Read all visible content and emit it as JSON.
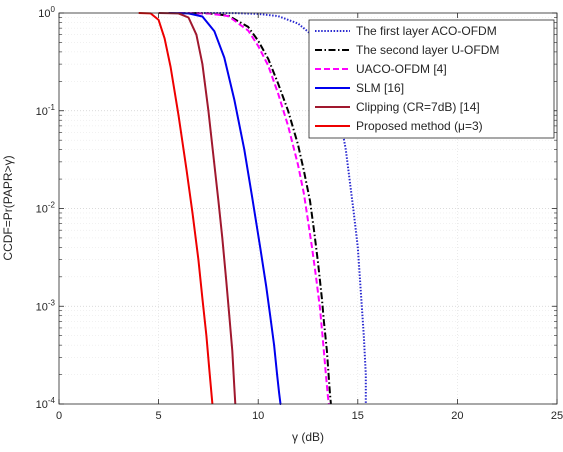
{
  "chart_data": {
    "type": "line",
    "title": "",
    "xlabel": "γ (dB)",
    "ylabel": "CCDF=Pr(PAPR>γ)",
    "xlim": [
      0,
      25
    ],
    "ylim": [
      0.0001,
      1
    ],
    "yscale": "log",
    "grid": true,
    "legend_position": "top-right",
    "x_ticks": [
      "0",
      "5",
      "10",
      "15",
      "20",
      "25"
    ],
    "y_ticks": [
      {
        "base": "10",
        "exp": "0"
      },
      {
        "base": "10",
        "exp": "-1"
      },
      {
        "base": "10",
        "exp": "-2"
      },
      {
        "base": "10",
        "exp": "-3"
      },
      {
        "base": "10",
        "exp": "-4"
      }
    ],
    "series": [
      {
        "name": "The first layer ACO-OFDM",
        "color": "#2a2ad0",
        "style": "dotted",
        "x": [
          6.5,
          8.0,
          9.0,
          10.0,
          11.0,
          12.0,
          12.6,
          13.0,
          13.5,
          13.8,
          14.1,
          14.4,
          14.6,
          14.8,
          15.0,
          15.1,
          15.2,
          15.3,
          15.4,
          15.4
        ],
        "y": [
          1.0,
          1.0,
          0.995,
          0.98,
          0.93,
          0.78,
          0.62,
          0.48,
          0.29,
          0.17,
          0.085,
          0.04,
          0.019,
          0.009,
          0.004,
          0.002,
          0.001,
          0.0005,
          0.0002,
          0.0001
        ]
      },
      {
        "name": "The second layer U-OFDM",
        "color": "#000000",
        "style": "dashdot",
        "x": [
          6.0,
          7.5,
          8.5,
          9.5,
          10.0,
          10.5,
          11.0,
          11.5,
          12.0,
          12.3,
          12.6,
          12.8,
          13.0,
          13.2,
          13.3,
          13.45,
          13.55,
          13.6,
          13.65
        ],
        "y": [
          1.0,
          0.99,
          0.94,
          0.72,
          0.52,
          0.34,
          0.19,
          0.1,
          0.045,
          0.024,
          0.012,
          0.006,
          0.0028,
          0.0012,
          0.0007,
          0.00035,
          0.00018,
          0.00013,
          0.0001
        ]
      },
      {
        "name": "UACO-OFDM [4]",
        "color": "#ff00ff",
        "style": "dashed",
        "x": [
          6.0,
          7.5,
          8.5,
          9.5,
          10.0,
          10.5,
          11.0,
          11.5,
          12.0,
          12.3,
          12.5,
          12.7,
          12.9,
          13.1,
          13.25,
          13.4,
          13.5,
          13.55
        ],
        "y": [
          1.0,
          0.99,
          0.93,
          0.66,
          0.46,
          0.29,
          0.15,
          0.07,
          0.028,
          0.014,
          0.0075,
          0.004,
          0.002,
          0.00095,
          0.00045,
          0.0002,
          0.00012,
          0.0001
        ]
      },
      {
        "name": "SLM [16]",
        "color": "#0000ee",
        "style": "solid",
        "x": [
          5.5,
          6.5,
          7.2,
          7.8,
          8.3,
          8.8,
          9.3,
          9.7,
          10.1,
          10.4,
          10.6,
          10.8,
          10.95,
          11.05,
          11.12,
          11.15
        ],
        "y": [
          1.0,
          0.99,
          0.92,
          0.65,
          0.35,
          0.13,
          0.04,
          0.013,
          0.004,
          0.0016,
          0.0008,
          0.0004,
          0.0002,
          0.00013,
          0.0001,
          0.0001
        ]
      },
      {
        "name": "Clipping (CR=7dB) [14]",
        "color": "#a0182e",
        "style": "solid",
        "x": [
          5.0,
          6.0,
          6.5,
          6.9,
          7.2,
          7.5,
          7.8,
          8.0,
          8.2,
          8.4,
          8.55,
          8.7,
          8.8,
          8.85
        ],
        "y": [
          1.0,
          0.99,
          0.9,
          0.6,
          0.3,
          0.1,
          0.028,
          0.012,
          0.005,
          0.0018,
          0.0008,
          0.00035,
          0.00015,
          0.0001
        ]
      },
      {
        "name": "Proposed method (μ=3)",
        "color": "#ee0000",
        "style": "solid",
        "x": [
          4.0,
          4.6,
          5.0,
          5.3,
          5.6,
          6.0,
          6.4,
          6.7,
          7.0,
          7.2,
          7.4,
          7.55,
          7.65,
          7.7
        ],
        "y": [
          1.0,
          0.99,
          0.85,
          0.55,
          0.28,
          0.09,
          0.025,
          0.009,
          0.003,
          0.0012,
          0.0005,
          0.00022,
          0.00013,
          0.0001
        ]
      }
    ]
  }
}
